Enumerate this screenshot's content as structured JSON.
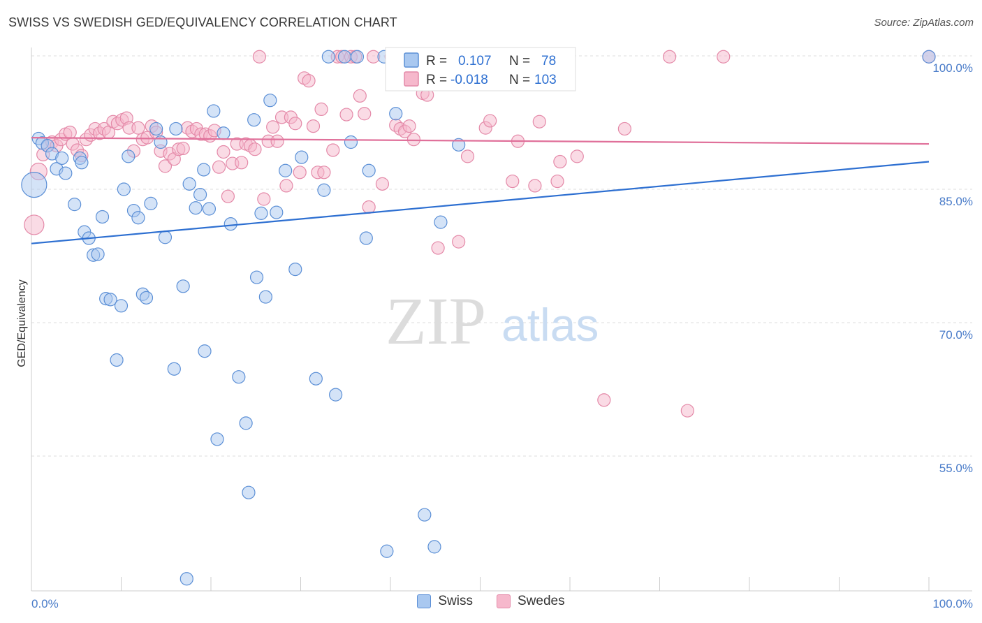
{
  "title": "SWISS VS SWEDISH GED/EQUIVALENCY CORRELATION CHART",
  "source": "Source: ZipAtlas.com",
  "watermark": {
    "zip": "ZIP",
    "atlas": "atlas"
  },
  "colors": {
    "swiss_fill": "#a9c8f0",
    "swiss_stroke": "#5b8fd6",
    "swiss_line": "#2d6fd1",
    "swedes_fill": "#f6b8cc",
    "swedes_stroke": "#e489a8",
    "swedes_line": "#e0709a",
    "tick_text": "#4a7cc9"
  },
  "legend": {
    "rows": [
      {
        "r_label": "R =",
        "r_value": "0.107",
        "n_label": "N =",
        "n_value": "78",
        "color": "#5b8fd6"
      },
      {
        "r_label": "R =",
        "r_value": "-0.018",
        "n_label": "N =",
        "n_value": "103",
        "color": "#e489a8"
      }
    ]
  },
  "bottom_legend": [
    {
      "label": "Swiss",
      "fill": "#a9c8f0",
      "stroke": "#5b8fd6"
    },
    {
      "label": "Swedes",
      "fill": "#f6b8cc",
      "stroke": "#e489a8"
    }
  ],
  "chart_data": {
    "type": "scatter",
    "title": "SWISS VS SWEDISH GED/EQUIVALENCY CORRELATION CHART",
    "xlabel": "",
    "ylabel": "GED/Equivalency",
    "xlim": [
      0,
      100
    ],
    "ylim": [
      41,
      101
    ],
    "x_tick_labels": [
      "0.0%",
      "100.0%"
    ],
    "y_ticks": [
      {
        "value": 100,
        "label": "100.0%"
      },
      {
        "value": 85,
        "label": "85.0%"
      },
      {
        "value": 70,
        "label": "70.0%"
      },
      {
        "value": 55,
        "label": "55.0%"
      }
    ],
    "grid": "horizontal dashed",
    "legend_position": "top-center",
    "series": [
      {
        "name": "Swiss",
        "r": 0.107,
        "n": 78,
        "trend": {
          "x": [
            0,
            100
          ],
          "y": [
            78.9,
            88.1
          ]
        },
        "points": [
          [
            0.3,
            85.5,
            18
          ],
          [
            0.8,
            90.7,
            9
          ],
          [
            1.2,
            90.2,
            9
          ],
          [
            1.8,
            89.9,
            9
          ],
          [
            2.3,
            89.0,
            9
          ],
          [
            2.8,
            87.3,
            9
          ],
          [
            3.4,
            88.5,
            9
          ],
          [
            3.8,
            86.8,
            9
          ],
          [
            4.8,
            83.3,
            9
          ],
          [
            5.4,
            88.5,
            9
          ],
          [
            5.6,
            88.0,
            9
          ],
          [
            5.9,
            80.2,
            9
          ],
          [
            6.4,
            79.5,
            9
          ],
          [
            6.9,
            77.6,
            9
          ],
          [
            7.4,
            77.7,
            9
          ],
          [
            7.9,
            81.9,
            9
          ],
          [
            8.3,
            72.7,
            9
          ],
          [
            8.8,
            72.6,
            9
          ],
          [
            9.5,
            65.8,
            9
          ],
          [
            10.0,
            71.9,
            9
          ],
          [
            10.3,
            85.0,
            9
          ],
          [
            10.8,
            88.7,
            9
          ],
          [
            11.4,
            82.6,
            9
          ],
          [
            11.9,
            81.8,
            9
          ],
          [
            12.4,
            73.2,
            9
          ],
          [
            12.8,
            72.8,
            9
          ],
          [
            13.3,
            83.4,
            9
          ],
          [
            13.9,
            91.8,
            9
          ],
          [
            14.4,
            90.3,
            9
          ],
          [
            14.9,
            79.6,
            9
          ],
          [
            15.9,
            64.8,
            9
          ],
          [
            16.1,
            91.8,
            9
          ],
          [
            16.9,
            74.1,
            9
          ],
          [
            17.3,
            41.2,
            9
          ],
          [
            17.6,
            85.6,
            9
          ],
          [
            18.3,
            82.9,
            9
          ],
          [
            18.8,
            84.4,
            9
          ],
          [
            19.2,
            87.2,
            9
          ],
          [
            19.3,
            66.8,
            9
          ],
          [
            19.8,
            82.8,
            9
          ],
          [
            20.3,
            93.8,
            9
          ],
          [
            20.7,
            56.9,
            9
          ],
          [
            21.4,
            91.3,
            9
          ],
          [
            22.2,
            81.1,
            9
          ],
          [
            23.1,
            63.9,
            9
          ],
          [
            23.9,
            58.7,
            9
          ],
          [
            24.2,
            50.9,
            9
          ],
          [
            24.8,
            92.8,
            9
          ],
          [
            25.1,
            75.1,
            9
          ],
          [
            25.6,
            82.3,
            9
          ],
          [
            26.1,
            72.9,
            9
          ],
          [
            26.6,
            95.0,
            9
          ],
          [
            27.3,
            82.4,
            9
          ],
          [
            28.3,
            87.1,
            9
          ],
          [
            29.4,
            76.0,
            9
          ],
          [
            30.1,
            88.6,
            9
          ],
          [
            31.7,
            63.7,
            9
          ],
          [
            32.6,
            84.9,
            9
          ],
          [
            33.1,
            99.9,
            9
          ],
          [
            33.9,
            61.9,
            9
          ],
          [
            34.9,
            99.9,
            9
          ],
          [
            35.6,
            90.3,
            9
          ],
          [
            36.3,
            99.9,
            9
          ],
          [
            37.3,
            79.5,
            9
          ],
          [
            37.6,
            87.1,
            9
          ],
          [
            39.3,
            99.9,
            9
          ],
          [
            39.6,
            44.3,
            9
          ],
          [
            40.6,
            93.5,
            9
          ],
          [
            42.3,
            99.9,
            9
          ],
          [
            43.8,
            48.4,
            9
          ],
          [
            44.9,
            44.8,
            9
          ],
          [
            45.6,
            81.3,
            9
          ],
          [
            46.4,
            99.9,
            9
          ],
          [
            47.1,
            99.9,
            9
          ],
          [
            47.6,
            90.0,
            9
          ],
          [
            49.1,
            99.9,
            9
          ],
          [
            54.4,
            99.9,
            9
          ],
          [
            100.0,
            99.9,
            9
          ]
        ]
      },
      {
        "name": "Swedes",
        "r": -0.018,
        "n": 103,
        "trend": {
          "x": [
            0,
            100
          ],
          "y": [
            90.8,
            90.1
          ]
        },
        "points": [
          [
            0.3,
            81.0,
            14
          ],
          [
            0.8,
            87.0,
            12
          ],
          [
            1.3,
            88.9,
            9
          ],
          [
            1.8,
            89.9,
            9
          ],
          [
            2.3,
            90.3,
            9
          ],
          [
            2.8,
            89.9,
            9
          ],
          [
            3.3,
            90.6,
            9
          ],
          [
            3.8,
            91.2,
            9
          ],
          [
            4.3,
            91.4,
            9
          ],
          [
            4.6,
            90.1,
            9
          ],
          [
            5.1,
            89.4,
            9
          ],
          [
            5.6,
            88.8,
            9
          ],
          [
            6.1,
            90.6,
            9
          ],
          [
            6.6,
            91.1,
            9
          ],
          [
            7.1,
            91.8,
            9
          ],
          [
            7.6,
            91.3,
            9
          ],
          [
            8.1,
            91.8,
            9
          ],
          [
            8.6,
            91.4,
            9
          ],
          [
            9.1,
            92.6,
            9
          ],
          [
            9.6,
            92.4,
            9
          ],
          [
            10.1,
            92.8,
            9
          ],
          [
            10.6,
            93.0,
            9
          ],
          [
            10.9,
            91.9,
            9
          ],
          [
            11.4,
            89.3,
            9
          ],
          [
            11.9,
            91.9,
            9
          ],
          [
            12.4,
            90.6,
            9
          ],
          [
            12.9,
            90.8,
            9
          ],
          [
            13.4,
            92.1,
            9
          ],
          [
            13.9,
            91.4,
            9
          ],
          [
            14.4,
            89.3,
            9
          ],
          [
            14.9,
            87.6,
            9
          ],
          [
            15.4,
            89.0,
            9
          ],
          [
            15.9,
            88.4,
            9
          ],
          [
            16.4,
            89.5,
            9
          ],
          [
            16.9,
            89.6,
            9
          ],
          [
            17.4,
            91.9,
            9
          ],
          [
            17.9,
            91.5,
            9
          ],
          [
            18.4,
            91.8,
            9
          ],
          [
            18.9,
            91.2,
            9
          ],
          [
            19.4,
            91.2,
            9
          ],
          [
            19.9,
            91.0,
            9
          ],
          [
            20.4,
            91.6,
            9
          ],
          [
            20.9,
            87.5,
            9
          ],
          [
            21.4,
            89.2,
            9
          ],
          [
            21.9,
            84.2,
            9
          ],
          [
            22.4,
            87.9,
            9
          ],
          [
            22.9,
            90.1,
            9
          ],
          [
            23.4,
            88.0,
            9
          ],
          [
            23.9,
            90.1,
            9
          ],
          [
            24.4,
            89.9,
            9
          ],
          [
            24.9,
            89.5,
            9
          ],
          [
            25.4,
            99.9,
            9
          ],
          [
            25.9,
            83.9,
            9
          ],
          [
            26.4,
            90.4,
            9
          ],
          [
            26.9,
            92.0,
            9
          ],
          [
            27.4,
            90.4,
            9
          ],
          [
            27.9,
            93.1,
            9
          ],
          [
            28.4,
            85.4,
            9
          ],
          [
            28.9,
            93.1,
            9
          ],
          [
            29.4,
            92.4,
            9
          ],
          [
            29.9,
            86.9,
            9
          ],
          [
            30.4,
            97.5,
            9
          ],
          [
            30.9,
            97.2,
            9
          ],
          [
            31.4,
            92.1,
            9
          ],
          [
            31.9,
            86.9,
            9
          ],
          [
            32.3,
            94.0,
            9
          ],
          [
            32.6,
            86.9,
            9
          ],
          [
            33.6,
            89.4,
            9
          ],
          [
            34.1,
            99.9,
            9
          ],
          [
            34.6,
            99.9,
            9
          ],
          [
            35.1,
            93.4,
            9
          ],
          [
            35.6,
            99.9,
            9
          ],
          [
            36.1,
            99.9,
            9
          ],
          [
            36.6,
            95.5,
            9
          ],
          [
            37.1,
            93.5,
            9
          ],
          [
            37.6,
            83.0,
            9
          ],
          [
            38.1,
            99.9,
            9
          ],
          [
            39.1,
            85.6,
            9
          ],
          [
            40.1,
            99.9,
            9
          ],
          [
            40.6,
            92.2,
            9
          ],
          [
            41.1,
            91.8,
            9
          ],
          [
            41.6,
            91.5,
            9
          ],
          [
            42.1,
            92.1,
            9
          ],
          [
            42.6,
            90.6,
            9
          ],
          [
            43.1,
            99.9,
            9
          ],
          [
            43.6,
            95.8,
            9
          ],
          [
            44.1,
            95.6,
            9
          ],
          [
            45.3,
            78.4,
            9
          ],
          [
            47.6,
            79.1,
            9
          ],
          [
            48.6,
            88.7,
            9
          ],
          [
            50.6,
            91.9,
            9
          ],
          [
            51.1,
            92.7,
            9
          ],
          [
            53.6,
            85.9,
            9
          ],
          [
            54.2,
            90.4,
            9
          ],
          [
            56.1,
            85.4,
            9
          ],
          [
            56.6,
            92.6,
            9
          ],
          [
            58.6,
            85.9,
            9
          ],
          [
            58.9,
            88.1,
            9
          ],
          [
            60.8,
            88.7,
            9
          ],
          [
            63.8,
            61.3,
            9
          ],
          [
            66.1,
            91.8,
            9
          ],
          [
            71.1,
            99.9,
            9
          ],
          [
            73.1,
            60.1,
            9
          ],
          [
            77.1,
            99.9,
            9
          ],
          [
            100.0,
            99.9,
            9
          ]
        ]
      }
    ]
  }
}
